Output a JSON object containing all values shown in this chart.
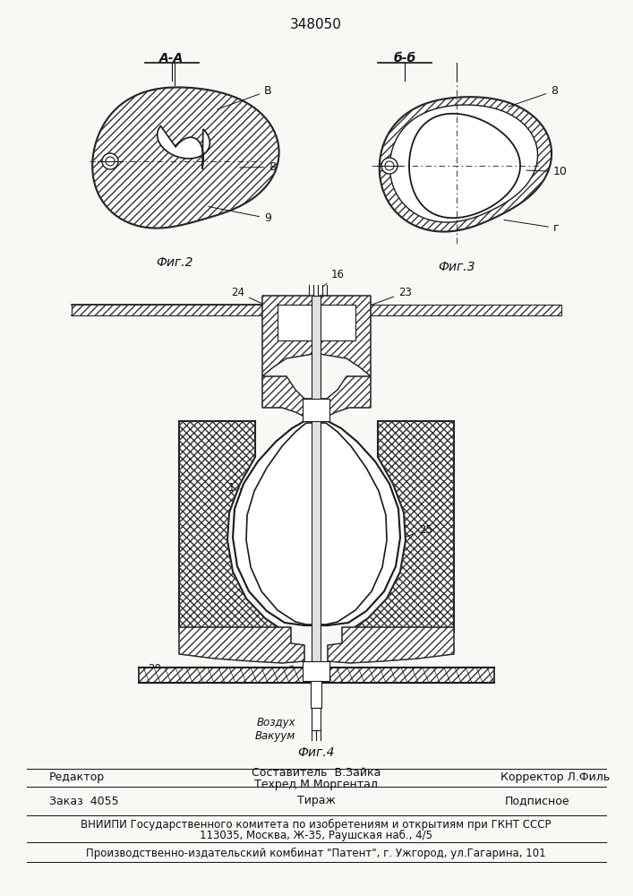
{
  "patent_number": "348050",
  "background_color": "#f8f8f5",
  "fig2_label": "Фиг.2",
  "fig3_label": "Фиг.3",
  "fig4_label": "Фиг.4",
  "section_aa": "А-А",
  "section_bb": "б-б",
  "editor_line": "Редактор",
  "composer_line": "Составитель  В.Зайка",
  "techred_line": "Техред М.Моргентал",
  "corrector_line": "Корректор Л.Филь",
  "order_line": "Заказ  4055",
  "tirazh_line": "Тираж",
  "podpisnoe_line": "Подписное",
  "vniiipi_line": "ВНИИПИ Государственного комитета по изобретениям и открытиям при ГКНТ СССР",
  "address_line": "113035, Москва, Ж-35, Раушская наб., 4/5",
  "publisher_line": "Производственно-издательский комбинат \"Патент\", г. Ужгород, ул.Гагарина, 101",
  "air_vacuum_label": "Воздух\nВакуум",
  "lc": "#1a1a1a",
  "tc": "#111111",
  "hc": "#333333"
}
